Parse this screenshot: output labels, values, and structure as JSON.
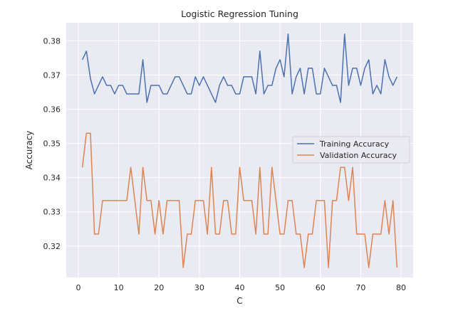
{
  "chart_data": {
    "type": "line",
    "title": "Logistic Regression Tuning",
    "xlabel": "C",
    "ylabel": "Accuracy",
    "xlim": [
      -3,
      83
    ],
    "ylim": [
      0.3108,
      0.3853
    ],
    "xticks": [
      0,
      10,
      20,
      30,
      40,
      50,
      60,
      70,
      80
    ],
    "yticks": [
      0.32,
      0.33,
      0.34,
      0.35,
      0.36,
      0.37,
      0.38
    ],
    "grid": true,
    "legend_position": "center-right",
    "x": [
      1,
      2,
      3,
      4,
      5,
      6,
      7,
      8,
      9,
      10,
      11,
      12,
      13,
      14,
      15,
      16,
      17,
      18,
      19,
      20,
      21,
      22,
      23,
      24,
      25,
      26,
      27,
      28,
      29,
      30,
      31,
      32,
      33,
      34,
      35,
      36,
      37,
      38,
      39,
      40,
      41,
      42,
      43,
      44,
      45,
      46,
      47,
      48,
      49,
      50,
      51,
      52,
      53,
      54,
      55,
      56,
      57,
      58,
      59,
      60,
      61,
      62,
      63,
      64,
      65,
      66,
      67,
      68,
      69,
      70,
      71,
      72,
      73,
      74,
      75,
      76,
      77,
      78,
      79
    ],
    "series": [
      {
        "name": "Training Accuracy",
        "color": "#4c72b0",
        "values": [
          0.3745,
          0.377,
          0.369,
          0.3645,
          0.367,
          0.3695,
          0.367,
          0.367,
          0.3645,
          0.367,
          0.367,
          0.3645,
          0.3645,
          0.3645,
          0.3645,
          0.3745,
          0.362,
          0.367,
          0.367,
          0.367,
          0.3645,
          0.3645,
          0.367,
          0.3695,
          0.3695,
          0.367,
          0.3645,
          0.3645,
          0.3695,
          0.367,
          0.3695,
          0.367,
          0.3645,
          0.362,
          0.367,
          0.3695,
          0.367,
          0.367,
          0.3645,
          0.3645,
          0.3695,
          0.3695,
          0.3695,
          0.3645,
          0.377,
          0.3645,
          0.367,
          0.367,
          0.372,
          0.3745,
          0.3695,
          0.382,
          0.3645,
          0.3695,
          0.372,
          0.3645,
          0.372,
          0.372,
          0.3645,
          0.3645,
          0.372,
          0.3695,
          0.367,
          0.367,
          0.362,
          0.382,
          0.367,
          0.372,
          0.372,
          0.367,
          0.372,
          0.3745,
          0.3645,
          0.367,
          0.3645,
          0.3745,
          0.3695,
          0.367,
          0.3695
        ]
      },
      {
        "name": "Validation Accuracy",
        "color": "#dd8452",
        "values": [
          0.343,
          0.353,
          0.353,
          0.3235,
          0.3235,
          0.3333,
          0.3333,
          0.3333,
          0.3333,
          0.3333,
          0.3333,
          0.3333,
          0.343,
          0.3333,
          0.3235,
          0.343,
          0.3333,
          0.3333,
          0.3235,
          0.3333,
          0.3235,
          0.3333,
          0.3333,
          0.3333,
          0.3333,
          0.3137,
          0.3235,
          0.3235,
          0.3333,
          0.3333,
          0.3333,
          0.3235,
          0.343,
          0.3235,
          0.3235,
          0.3333,
          0.3333,
          0.3235,
          0.3235,
          0.343,
          0.3333,
          0.3333,
          0.3333,
          0.3235,
          0.343,
          0.3235,
          0.3235,
          0.343,
          0.3333,
          0.3235,
          0.3235,
          0.3333,
          0.3333,
          0.3235,
          0.3235,
          0.3137,
          0.3235,
          0.3235,
          0.3333,
          0.3333,
          0.3333,
          0.3137,
          0.3333,
          0.3333,
          0.343,
          0.343,
          0.3333,
          0.343,
          0.3235,
          0.3235,
          0.3235,
          0.3137,
          0.3235,
          0.3235,
          0.3235,
          0.3333,
          0.3235,
          0.3333,
          0.3137
        ]
      }
    ]
  }
}
